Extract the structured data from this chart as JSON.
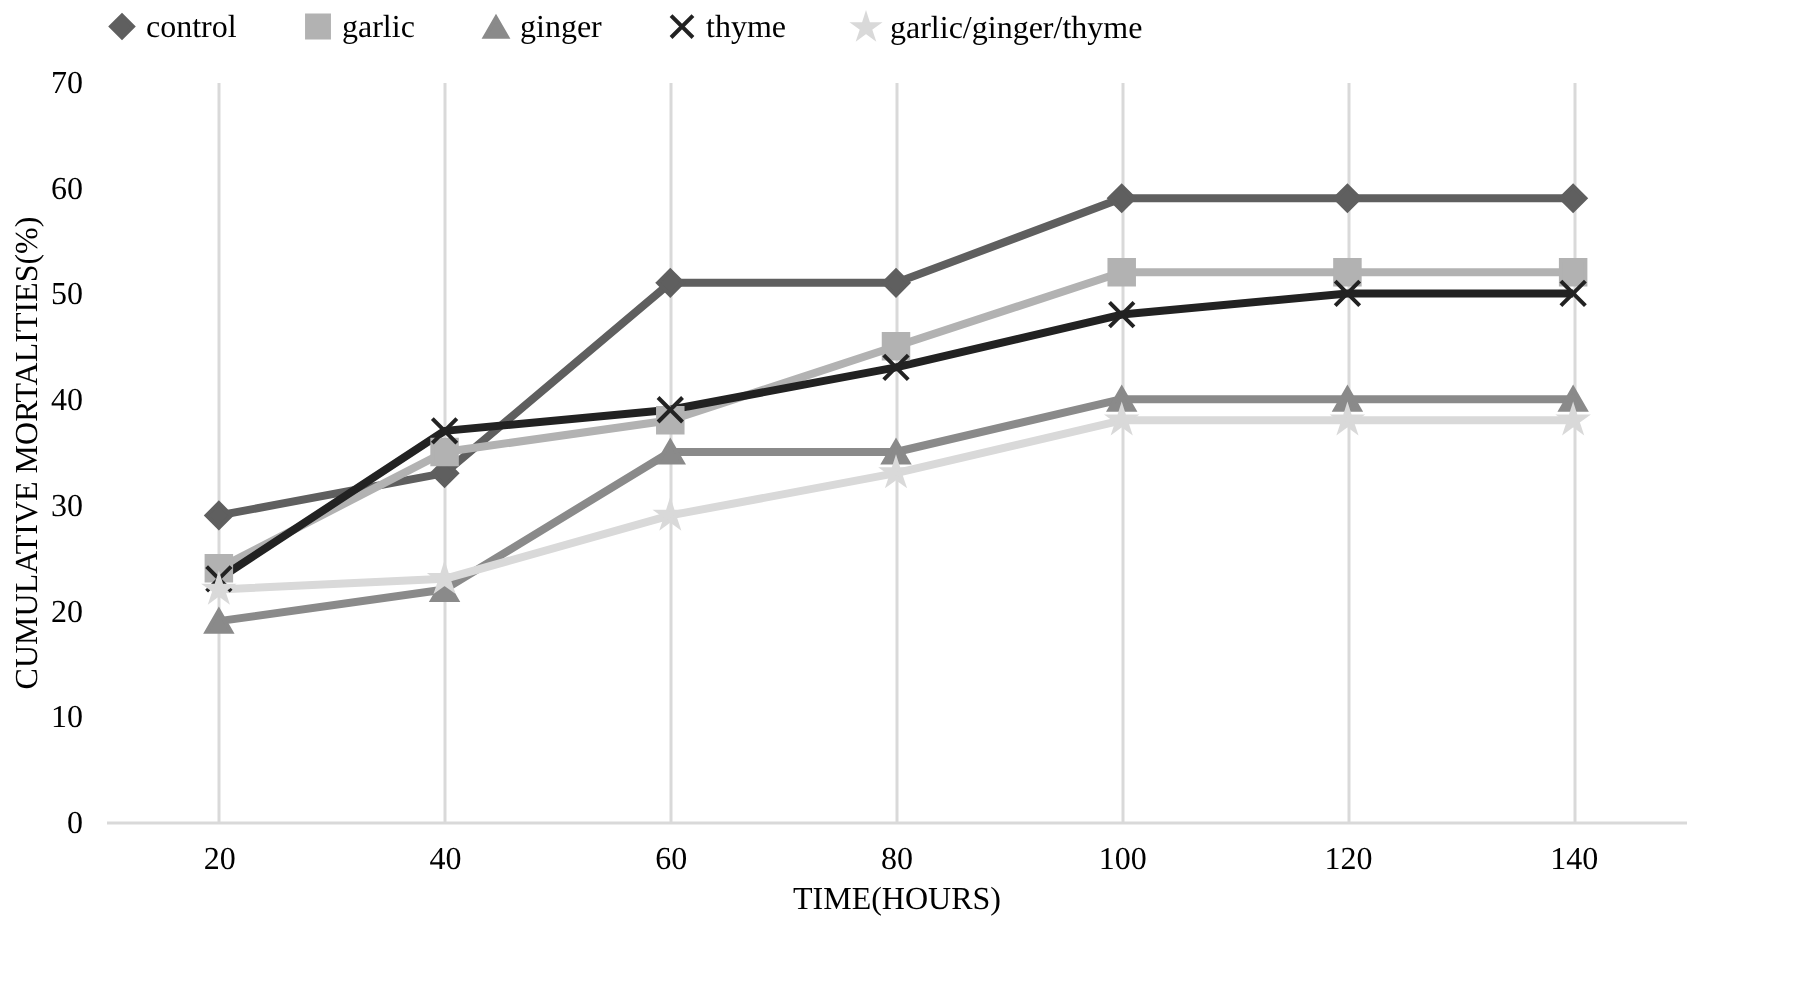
{
  "chart_data": {
    "type": "line",
    "xlabel": "TIME(HOURS)",
    "ylabel": "CUMULATIVE MORTALITIES(%)",
    "categories": [
      "20",
      "40",
      "60",
      "80",
      "100",
      "120",
      "140"
    ],
    "series": [
      {
        "name": "control",
        "color": "#5f5f5f",
        "marker": "diamond",
        "values": [
          29,
          33,
          51,
          51,
          59,
          59,
          59
        ]
      },
      {
        "name": "garlic",
        "color": "#b2b2b2",
        "marker": "square",
        "values": [
          24,
          35,
          38,
          45,
          52,
          52,
          52
        ]
      },
      {
        "name": "ginger",
        "color": "#8a8a8a",
        "marker": "triangle",
        "values": [
          19,
          22,
          35,
          35,
          40,
          40,
          40
        ]
      },
      {
        "name": "thyme",
        "color": "#222222",
        "marker": "cross",
        "values": [
          23,
          37,
          39,
          43,
          48,
          50,
          50
        ]
      },
      {
        "name": "garlic/ginger/thyme",
        "color": "#d9d9d9",
        "marker": "star",
        "values": [
          22,
          23,
          29,
          33,
          38,
          38,
          38
        ]
      }
    ],
    "ylim": [
      0,
      70
    ],
    "yticks": [
      0,
      10,
      20,
      30,
      40,
      50,
      60,
      70
    ],
    "grid": "x",
    "legend": "top",
    "line_style": "solid"
  }
}
